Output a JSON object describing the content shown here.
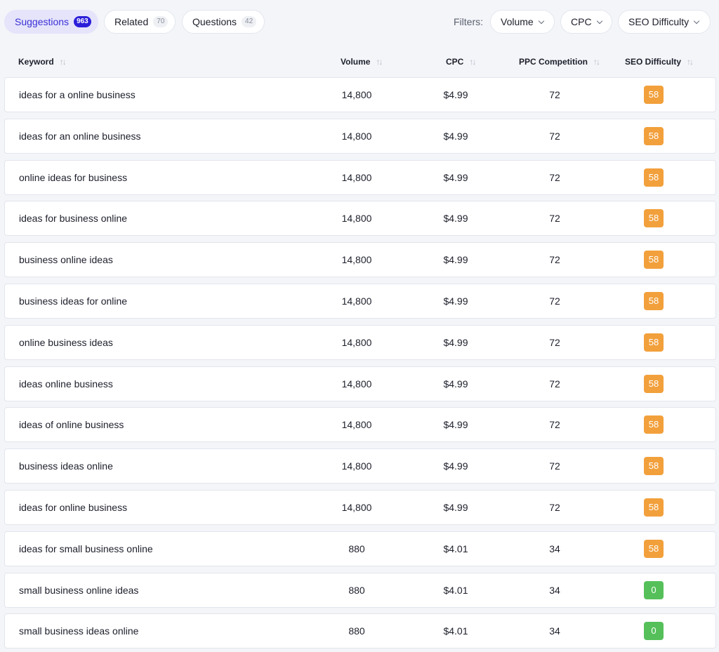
{
  "tabs": [
    {
      "label": "Suggestions",
      "count": "963",
      "active": true
    },
    {
      "label": "Related",
      "count": "70",
      "active": false
    },
    {
      "label": "Questions",
      "count": "42",
      "active": false
    }
  ],
  "filters": {
    "label": "Filters:",
    "items": [
      "Volume",
      "CPC",
      "SEO Difficulty"
    ]
  },
  "columns": [
    "Keyword",
    "Volume",
    "CPC",
    "PPC Competition",
    "SEO Difficulty"
  ],
  "colors": {
    "accent": "#2c1fd9",
    "difficulty_medium": "#f2a03c",
    "difficulty_easy": "#55c05a"
  },
  "rows": [
    {
      "keyword": "ideas for a online business",
      "volume": "14,800",
      "cpc": "$4.99",
      "ppc": "72",
      "seo": "58",
      "level": "medium"
    },
    {
      "keyword": "ideas for an online business",
      "volume": "14,800",
      "cpc": "$4.99",
      "ppc": "72",
      "seo": "58",
      "level": "medium"
    },
    {
      "keyword": "online ideas for business",
      "volume": "14,800",
      "cpc": "$4.99",
      "ppc": "72",
      "seo": "58",
      "level": "medium"
    },
    {
      "keyword": "ideas for business online",
      "volume": "14,800",
      "cpc": "$4.99",
      "ppc": "72",
      "seo": "58",
      "level": "medium"
    },
    {
      "keyword": "business online ideas",
      "volume": "14,800",
      "cpc": "$4.99",
      "ppc": "72",
      "seo": "58",
      "level": "medium"
    },
    {
      "keyword": "business ideas for online",
      "volume": "14,800",
      "cpc": "$4.99",
      "ppc": "72",
      "seo": "58",
      "level": "medium"
    },
    {
      "keyword": "online business ideas",
      "volume": "14,800",
      "cpc": "$4.99",
      "ppc": "72",
      "seo": "58",
      "level": "medium"
    },
    {
      "keyword": "ideas online business",
      "volume": "14,800",
      "cpc": "$4.99",
      "ppc": "72",
      "seo": "58",
      "level": "medium"
    },
    {
      "keyword": "ideas of online business",
      "volume": "14,800",
      "cpc": "$4.99",
      "ppc": "72",
      "seo": "58",
      "level": "medium"
    },
    {
      "keyword": "business ideas online",
      "volume": "14,800",
      "cpc": "$4.99",
      "ppc": "72",
      "seo": "58",
      "level": "medium"
    },
    {
      "keyword": "ideas for online business",
      "volume": "14,800",
      "cpc": "$4.99",
      "ppc": "72",
      "seo": "58",
      "level": "medium"
    },
    {
      "keyword": "ideas for small business online",
      "volume": "880",
      "cpc": "$4.01",
      "ppc": "34",
      "seo": "58",
      "level": "medium"
    },
    {
      "keyword": "small business online ideas",
      "volume": "880",
      "cpc": "$4.01",
      "ppc": "34",
      "seo": "0",
      "level": "easy"
    },
    {
      "keyword": "small business ideas online",
      "volume": "880",
      "cpc": "$4.01",
      "ppc": "34",
      "seo": "0",
      "level": "easy"
    }
  ]
}
